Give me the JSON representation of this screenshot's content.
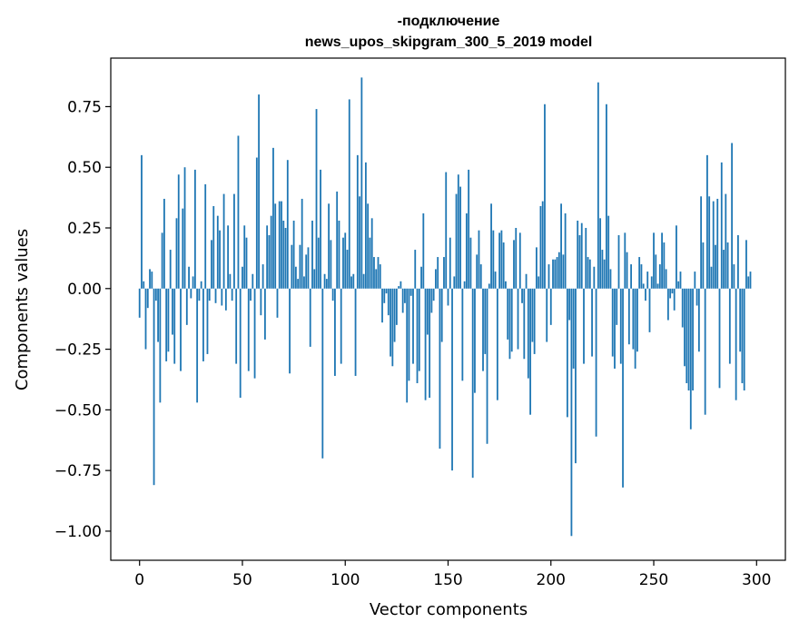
{
  "chart_data": {
    "type": "bar",
    "title_line1": "-подключение",
    "title_line2": "news_upos_skipgram_300_5_2019 model",
    "xlabel": "Vector components",
    "ylabel": "Components values",
    "xlim": [
      -14,
      314
    ],
    "ylim": [
      -1.12,
      0.95
    ],
    "xticks": [
      0,
      50,
      100,
      150,
      200,
      250,
      300
    ],
    "xtick_labels": [
      "0",
      "50",
      "100",
      "150",
      "200",
      "250",
      "300"
    ],
    "yticks": [
      -1.0,
      -0.75,
      -0.5,
      -0.25,
      0.0,
      0.25,
      0.5,
      0.75
    ],
    "ytick_labels": [
      "−1.00",
      "−0.75",
      "−0.50",
      "−0.25",
      "0.00",
      "0.25",
      "0.50",
      "0.75"
    ],
    "bar_color": "#1f77b4",
    "values": [
      -0.12,
      0.55,
      0.03,
      -0.25,
      -0.08,
      0.08,
      0.07,
      -0.81,
      -0.05,
      -0.22,
      -0.47,
      0.23,
      0.37,
      -0.3,
      -0.26,
      0.16,
      -0.19,
      -0.31,
      0.29,
      0.47,
      -0.34,
      0.33,
      0.5,
      -0.15,
      0.09,
      -0.04,
      0.05,
      0.49,
      -0.47,
      -0.05,
      0.03,
      -0.3,
      0.43,
      -0.27,
      -0.05,
      0.2,
      0.34,
      -0.06,
      0.3,
      0.24,
      -0.07,
      0.39,
      -0.09,
      0.26,
      0.06,
      -0.05,
      0.39,
      -0.31,
      0.63,
      -0.45,
      0.09,
      0.26,
      0.21,
      -0.34,
      -0.05,
      0.06,
      -0.37,
      0.54,
      0.8,
      -0.11,
      0.1,
      -0.21,
      0.26,
      0.22,
      0.3,
      0.58,
      0.35,
      -0.12,
      0.36,
      0.36,
      0.28,
      0.25,
      0.53,
      -0.35,
      0.18,
      0.28,
      0.09,
      0.04,
      0.18,
      0.37,
      0.05,
      0.14,
      0.17,
      -0.24,
      0.28,
      0.08,
      0.74,
      0.21,
      0.49,
      -0.7,
      0.06,
      0.04,
      0.35,
      0.2,
      -0.05,
      -0.36,
      0.4,
      0.28,
      -0.31,
      0.21,
      0.23,
      0.16,
      0.78,
      0.05,
      0.06,
      -0.36,
      0.55,
      0.38,
      0.87,
      0.06,
      0.52,
      0.35,
      0.21,
      0.29,
      0.13,
      0.08,
      0.13,
      0.1,
      -0.14,
      -0.06,
      -0.02,
      -0.11,
      -0.28,
      -0.32,
      -0.22,
      -0.15,
      0.01,
      0.03,
      -0.1,
      -0.06,
      -0.47,
      -0.38,
      -0.03,
      -0.31,
      0.16,
      -0.39,
      -0.34,
      0.09,
      0.31,
      -0.46,
      -0.19,
      -0.45,
      -0.1,
      -0.05,
      0.08,
      0.13,
      -0.66,
      -0.22,
      0.13,
      0.48,
      -0.07,
      0.21,
      -0.75,
      0.05,
      0.39,
      0.47,
      0.42,
      -0.38,
      0.03,
      0.31,
      0.49,
      0.21,
      -0.78,
      -0.43,
      0.14,
      0.24,
      0.1,
      -0.34,
      -0.27,
      -0.64,
      0.02,
      0.35,
      0.24,
      0.07,
      -0.46,
      0.23,
      0.24,
      0.19,
      0.03,
      -0.21,
      -0.29,
      -0.26,
      0.2,
      0.25,
      -0.25,
      0.23,
      -0.06,
      -0.29,
      0.06,
      -0.37,
      -0.52,
      -0.22,
      -0.27,
      0.17,
      0.05,
      0.34,
      0.36,
      0.76,
      -0.22,
      0.1,
      -0.15,
      0.12,
      0.12,
      0.13,
      0.15,
      0.35,
      0.14,
      0.31,
      -0.53,
      -0.13,
      -1.02,
      -0.33,
      -0.72,
      0.28,
      0.22,
      0.27,
      -0.31,
      0.25,
      0.13,
      0.12,
      -0.28,
      0.09,
      -0.61,
      0.85,
      0.29,
      0.16,
      0.12,
      0.76,
      0.3,
      0.08,
      -0.28,
      -0.33,
      -0.15,
      0.22,
      -0.31,
      -0.82,
      0.23,
      0.15,
      -0.23,
      0.1,
      -0.25,
      -0.33,
      -0.26,
      0.13,
      0.1,
      0.02,
      -0.05,
      0.07,
      -0.18,
      0.05,
      0.23,
      0.14,
      0.02,
      0.1,
      0.23,
      0.19,
      0.08,
      -0.13,
      -0.04,
      -0.02,
      -0.09,
      0.26,
      0.03,
      0.07,
      -0.16,
      -0.32,
      -0.39,
      -0.42,
      -0.58,
      -0.42,
      0.07,
      -0.07,
      -0.26,
      0.38,
      0.19,
      -0.52,
      0.55,
      0.38,
      0.09,
      0.36,
      0.18,
      0.37,
      -0.41,
      0.52,
      0.16,
      0.39,
      0.19,
      -0.31,
      0.6,
      0.1,
      -0.46,
      0.22,
      -0.26,
      -0.39,
      -0.42,
      0.2,
      0.05,
      0.07
    ]
  }
}
